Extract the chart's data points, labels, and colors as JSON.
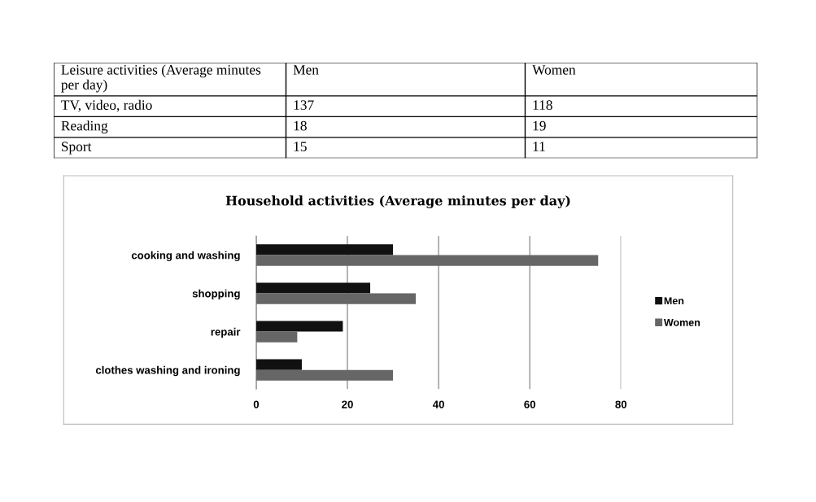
{
  "chart_data": [
    {
      "type": "other",
      "title": "Leisure activities (Average minutes per day)",
      "categories": [
        "TV, video, radio",
        "Reading",
        "Sport"
      ],
      "series": [
        {
          "name": "Men",
          "values": [
            137,
            18,
            15
          ]
        },
        {
          "name": "Women",
          "values": [
            118,
            19,
            11
          ]
        }
      ],
      "data_labels": true
    },
    {
      "type": "bar",
      "orientation": "horizontal",
      "title": "Household activities (Average minutes per day)",
      "categories": [
        "cooking and washing",
        "shopping",
        "repair",
        "clothes washing and ironing"
      ],
      "series": [
        {
          "name": "Men",
          "color": "#111111",
          "values": [
            30,
            25,
            19,
            10
          ]
        },
        {
          "name": "Women",
          "color": "#666666",
          "values": [
            75,
            35,
            9,
            30
          ]
        }
      ],
      "xlim": [
        0,
        80
      ],
      "xticks": [
        0,
        20,
        40,
        60,
        80
      ],
      "grid": "x",
      "legend": "right"
    }
  ]
}
